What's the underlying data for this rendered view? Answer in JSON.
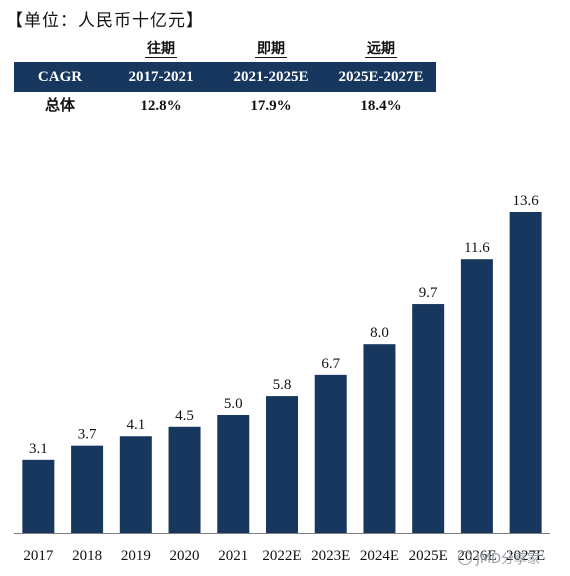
{
  "unit_label": "【单位：人民币十亿元】",
  "cagr_table": {
    "periods": [
      "往期",
      "即期",
      "远期"
    ],
    "header": [
      "CAGR",
      "2017-2021",
      "2021-2025E",
      "2025E-2027E"
    ],
    "row": [
      "总体",
      "12.8%",
      "17.9%",
      "18.4%"
    ]
  },
  "colors": {
    "bar": "#17375E",
    "header_bg": "#17375E",
    "axis": "#7f7f7f"
  },
  "watermark": {
    "text": "JMD分享家",
    "icon": "wechat-icon"
  },
  "chart_data": {
    "type": "bar",
    "categories": [
      "2017",
      "2018",
      "2019",
      "2020",
      "2021",
      "2022E",
      "2023E",
      "2024E",
      "2025E",
      "2026E",
      "2027E"
    ],
    "values": [
      3.1,
      3.7,
      4.1,
      4.5,
      5.0,
      5.8,
      6.7,
      8.0,
      9.7,
      11.6,
      13.6
    ],
    "value_labels": [
      "3.1",
      "3.7",
      "4.1",
      "4.5",
      "5.0",
      "5.8",
      "6.7",
      "8.0",
      "9.7",
      "11.6",
      "13.6"
    ],
    "title": "",
    "xlabel": "",
    "ylabel": "",
    "ylim": [
      0,
      14
    ],
    "grid": false,
    "legend": "none"
  }
}
